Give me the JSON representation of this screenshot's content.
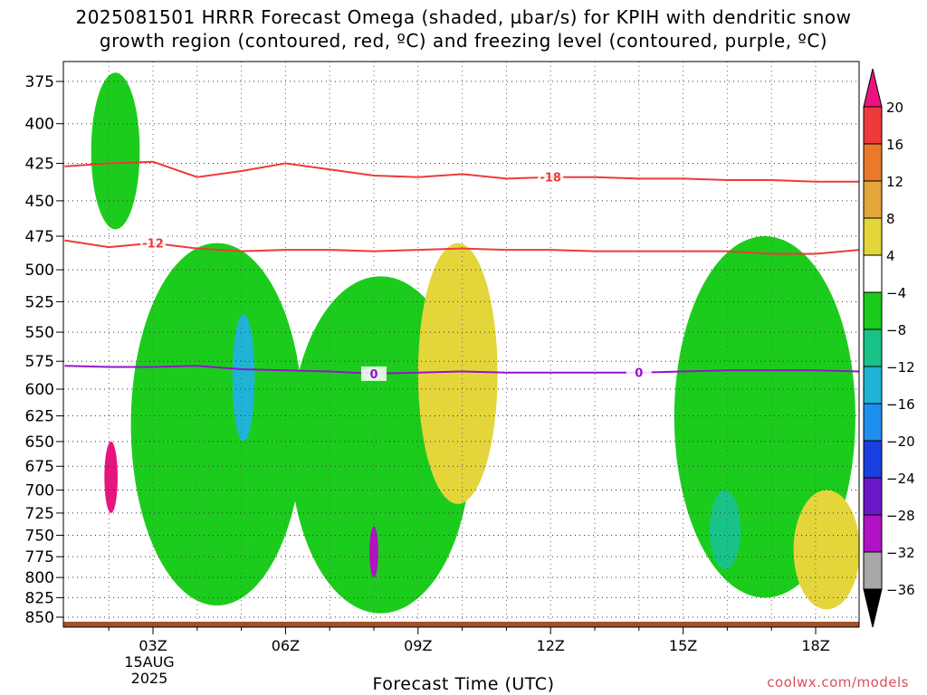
{
  "title_line1": "2025081501 HRRR Forecast Omega (shaded, µbar/s) for KPIH with dendritic snow",
  "title_line2": "growth region (contoured, red, ºC) and freezing level (contoured, purple, ºC)",
  "xlabel": "Forecast Time (UTC)",
  "source": "coolwx.com/models",
  "chart_data": {
    "type": "heatmap",
    "title": "2025081501 HRRR Forecast Omega (shaded, µbar/s) for KPIH with dendritic snow growth region (contoured, red, ºC) and freezing level (contoured, purple, ºC)",
    "xlabel": "Forecast Time (UTC)",
    "ylabel": "",
    "y_scale": "pressure (log)",
    "xlim": [
      1,
      19
    ],
    "ylim": [
      860,
      360
    ],
    "x_ticks": [
      {
        "value": 3,
        "label": "03Z",
        "sublabels": [
          "15AUG",
          "2025"
        ]
      },
      {
        "value": 6,
        "label": "06Z"
      },
      {
        "value": 9,
        "label": "09Z"
      },
      {
        "value": 12,
        "label": "12Z"
      },
      {
        "value": 15,
        "label": "15Z"
      },
      {
        "value": 18,
        "label": "18Z"
      }
    ],
    "y_ticks": [
      375,
      400,
      425,
      450,
      475,
      500,
      525,
      550,
      575,
      600,
      625,
      650,
      675,
      700,
      725,
      750,
      775,
      800,
      825,
      850
    ],
    "grid": true,
    "colorbar": {
      "levels": [
        20,
        16,
        12,
        8,
        4,
        -4,
        -8,
        -12,
        -16,
        -20,
        -24,
        -28,
        -32,
        -36
      ],
      "bands": [
        {
          "range": ">20",
          "color": "#e8137e"
        },
        {
          "range": "16 to 20",
          "color": "#ee3a3a"
        },
        {
          "range": "12 to 16",
          "color": "#ea7a2a"
        },
        {
          "range": "8 to 12",
          "color": "#e3a63a"
        },
        {
          "range": "4 to 8",
          "color": "#e4d63a"
        },
        {
          "range": "-4 to 4",
          "color": "#ffffff"
        },
        {
          "range": "-8 to -4",
          "color": "#1ccc1c"
        },
        {
          "range": "-12 to -8",
          "color": "#19c387"
        },
        {
          "range": "-16 to -12",
          "color": "#1fb4d6"
        },
        {
          "range": "-20 to -16",
          "color": "#1e8fee"
        },
        {
          "range": "-24 to -20",
          "color": "#1a3fe0"
        },
        {
          "range": "-28 to -24",
          "color": "#6a17c8"
        },
        {
          "range": "-32 to -28",
          "color": "#b012c4"
        },
        {
          "range": "-36 to -32",
          "color": "#a8a8a8"
        },
        {
          "range": "<-36",
          "color": "#000000"
        }
      ]
    },
    "shaded_regions": [
      {
        "value_range": "-8 to -4",
        "color": "#1ccc1c",
        "x": [
          1.6,
          2.7
        ],
        "pressure": [
          370,
          470
        ]
      },
      {
        "value_range": "-8 to -4",
        "color": "#1ccc1c",
        "x": [
          2.5,
          6.4
        ],
        "pressure": [
          480,
          835
        ]
      },
      {
        "value_range": "-16 to -12",
        "color": "#1fb4d6",
        "x": [
          4.8,
          5.3
        ],
        "pressure": [
          535,
          650
        ]
      },
      {
        "value_range": "-8 to -4",
        "color": "#1ccc1c",
        "x": [
          6.1,
          10.2
        ],
        "pressure": [
          505,
          845
        ]
      },
      {
        "value_range": "-32 to -28",
        "color": "#b012c4",
        "x": [
          7.9,
          8.1
        ],
        "pressure": [
          740,
          800
        ]
      },
      {
        "value_range": "-8 to -4",
        "color": "#1ccc1c",
        "x": [
          14.8,
          18.9
        ],
        "pressure": [
          475,
          825
        ]
      },
      {
        "value_range": "-12 to -8",
        "color": "#19c387",
        "x": [
          15.6,
          16.3
        ],
        "pressure": [
          700,
          790
        ]
      },
      {
        "value_range": ">20",
        "color": "#e8137e",
        "x": [
          1.9,
          2.2
        ],
        "pressure": [
          650,
          725
        ]
      },
      {
        "value_range": "4 to 8",
        "color": "#e4d63a",
        "x": [
          9.0,
          10.8
        ],
        "pressure": [
          480,
          715
        ]
      },
      {
        "value_range": "4 to 8",
        "color": "#e4d63a",
        "x": [
          17.5,
          19.0
        ],
        "pressure": [
          700,
          840
        ]
      }
    ],
    "series": [
      {
        "name": "-18",
        "color": "#ee3a3a",
        "contour": "dendritic snow growth region",
        "x": [
          1,
          2,
          3,
          4,
          5,
          6,
          7,
          8,
          9,
          10,
          11,
          12,
          13,
          14,
          15,
          16,
          17,
          18,
          19
        ],
        "values": [
          427,
          425,
          424,
          434,
          430,
          425,
          429,
          433,
          434,
          432,
          435,
          434,
          434,
          435,
          435,
          436,
          436,
          437,
          437
        ]
      },
      {
        "name": "-12",
        "color": "#ee3a3a",
        "contour": "dendritic snow growth region",
        "x": [
          1,
          2,
          3,
          4,
          5,
          6,
          7,
          8,
          9,
          10,
          11,
          12,
          13,
          14,
          15,
          16,
          17,
          18,
          19
        ],
        "values": [
          478,
          483,
          480,
          484,
          486,
          485,
          485,
          486,
          485,
          484,
          485,
          485,
          486,
          486,
          486,
          486,
          488,
          488,
          485
        ]
      },
      {
        "name": "0",
        "color": "#9414c8",
        "contour": "freezing level",
        "x": [
          1,
          2,
          3,
          4,
          5,
          6,
          7,
          8,
          9,
          10,
          11,
          12,
          13,
          14,
          15,
          16,
          17,
          18,
          19
        ],
        "values": [
          579,
          580,
          580,
          579,
          582,
          583,
          584,
          586,
          585,
          584,
          585,
          585,
          585,
          585,
          584,
          583,
          583,
          583,
          584
        ]
      }
    ]
  }
}
